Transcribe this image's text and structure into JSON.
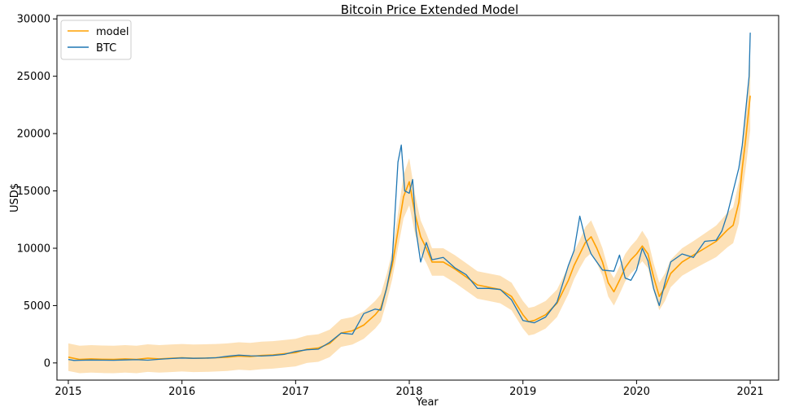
{
  "chart_data": {
    "type": "line",
    "title": "Bitcoin Price Extended Model",
    "xlabel": "Year",
    "ylabel": "USD$",
    "xlim": [
      2014.9,
      2021.25
    ],
    "ylim": [
      -1500,
      30300
    ],
    "x_ticks": [
      2015,
      2016,
      2017,
      2018,
      2019,
      2020,
      2021
    ],
    "x_tick_labels": [
      "2015",
      "2016",
      "2017",
      "2018",
      "2019",
      "2020",
      "2021"
    ],
    "y_ticks": [
      0,
      5000,
      10000,
      15000,
      20000,
      25000,
      30000
    ],
    "y_tick_labels": [
      "0",
      "5000",
      "10000",
      "15000",
      "20000",
      "25000",
      "30000"
    ],
    "grid": false,
    "legend": {
      "position": "top-left",
      "entries": [
        "model",
        "BTC"
      ]
    },
    "band": {
      "name": "model range",
      "color": "#fddcaa"
    },
    "series": [
      {
        "name": "model",
        "color": "#ffa000",
        "x": [
          2015.0,
          2015.1,
          2015.2,
          2015.3,
          2015.4,
          2015.5,
          2015.6,
          2015.7,
          2015.8,
          2015.9,
          2016.0,
          2016.1,
          2016.2,
          2016.3,
          2016.4,
          2016.5,
          2016.6,
          2016.7,
          2016.8,
          2016.9,
          2017.0,
          2017.1,
          2017.2,
          2017.3,
          2017.4,
          2017.5,
          2017.6,
          2017.7,
          2017.75,
          2017.8,
          2017.85,
          2017.9,
          2017.95,
          2018.0,
          2018.05,
          2018.1,
          2018.15,
          2018.2,
          2018.3,
          2018.4,
          2018.5,
          2018.6,
          2018.7,
          2018.8,
          2018.9,
          2019.0,
          2019.05,
          2019.1,
          2019.2,
          2019.3,
          2019.4,
          2019.45,
          2019.5,
          2019.55,
          2019.6,
          2019.65,
          2019.7,
          2019.75,
          2019.8,
          2019.85,
          2019.9,
          2019.95,
          2020.0,
          2020.05,
          2020.1,
          2020.15,
          2020.2,
          2020.25,
          2020.3,
          2020.4,
          2020.5,
          2020.6,
          2020.7,
          2020.75,
          2020.8,
          2020.85,
          2020.9,
          2020.93,
          2020.96,
          2021.0
        ],
        "values": [
          500,
          300,
          350,
          320,
          300,
          350,
          300,
          420,
          350,
          400,
          450,
          400,
          420,
          450,
          500,
          600,
          550,
          650,
          700,
          800,
          900,
          1200,
          1300,
          1700,
          2600,
          2800,
          3300,
          4200,
          4800,
          6500,
          8500,
          11500,
          14500,
          15800,
          13000,
          11000,
          10000,
          8800,
          8800,
          8200,
          7500,
          6800,
          6600,
          6400,
          5800,
          4200,
          3600,
          3700,
          4200,
          5200,
          7200,
          8500,
          9500,
          10500,
          11000,
          10000,
          8800,
          7000,
          6200,
          7200,
          8300,
          9000,
          9500,
          10200,
          9500,
          7500,
          5800,
          6600,
          7800,
          8800,
          9400,
          10000,
          10600,
          11100,
          11600,
          12000,
          14000,
          17000,
          19500,
          23300
        ]
      },
      {
        "name": "BTC",
        "color": "#1f77b4",
        "x": [
          2015.0,
          2015.05,
          2015.1,
          2015.2,
          2015.3,
          2015.4,
          2015.5,
          2015.6,
          2015.7,
          2015.8,
          2015.9,
          2016.0,
          2016.1,
          2016.2,
          2016.3,
          2016.4,
          2016.5,
          2016.6,
          2016.7,
          2016.8,
          2016.9,
          2017.0,
          2017.1,
          2017.2,
          2017.3,
          2017.4,
          2017.5,
          2017.6,
          2017.7,
          2017.75,
          2017.8,
          2017.85,
          2017.9,
          2017.93,
          2017.96,
          2018.0,
          2018.03,
          2018.06,
          2018.1,
          2018.15,
          2018.2,
          2018.3,
          2018.4,
          2018.5,
          2018.6,
          2018.7,
          2018.8,
          2018.9,
          2019.0,
          2019.1,
          2019.2,
          2019.3,
          2019.4,
          2019.45,
          2019.5,
          2019.55,
          2019.6,
          2019.7,
          2019.8,
          2019.85,
          2019.9,
          2019.95,
          2020.0,
          2020.05,
          2020.1,
          2020.15,
          2020.2,
          2020.25,
          2020.3,
          2020.4,
          2020.5,
          2020.6,
          2020.7,
          2020.75,
          2020.8,
          2020.85,
          2020.9,
          2020.93,
          2020.96,
          2020.99,
          2021.0
        ],
        "values": [
          300,
          220,
          230,
          250,
          240,
          230,
          260,
          280,
          240,
          320,
          380,
          430,
          400,
          420,
          450,
          580,
          680,
          620,
          600,
          650,
          740,
          1000,
          1150,
          1200,
          1800,
          2600,
          2500,
          4300,
          4700,
          4600,
          6500,
          9000,
          17500,
          19000,
          15000,
          14800,
          16000,
          11500,
          8800,
          10500,
          9000,
          9200,
          8300,
          7700,
          6500,
          6500,
          6400,
          5500,
          3700,
          3500,
          4000,
          5300,
          8500,
          9800,
          12800,
          10800,
          9500,
          8100,
          8000,
          9400,
          7400,
          7200,
          8100,
          10000,
          8900,
          6500,
          5000,
          7000,
          8800,
          9500,
          9200,
          10600,
          10700,
          11500,
          13000,
          15000,
          17000,
          19000,
          22000,
          25000,
          28800
        ]
      }
    ]
  }
}
